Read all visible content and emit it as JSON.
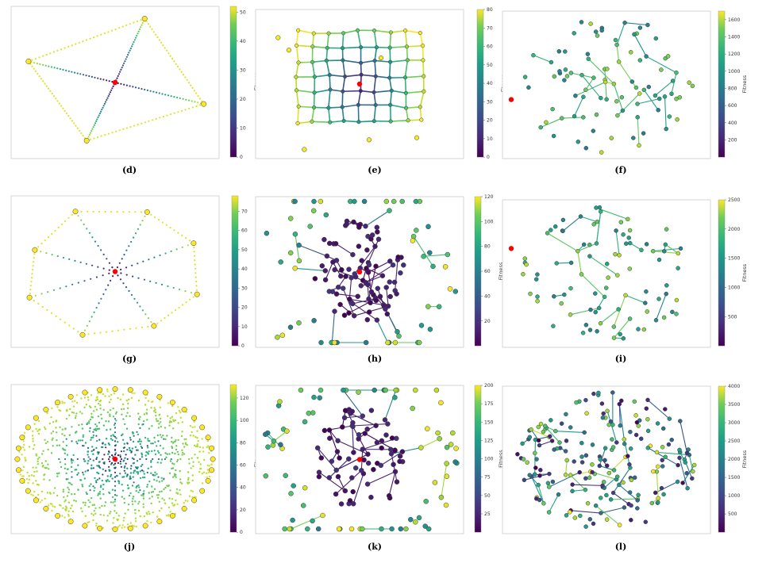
{
  "figure": {
    "colormap": "viridis",
    "center_marker_color": "#ff0000",
    "node_edge_color": "#3a3a3a",
    "frame_color": "#cccccc"
  },
  "chart_data": [
    {
      "type": "scatter",
      "panel": "(d)",
      "pattern": "star",
      "arms": 4,
      "seed": 11,
      "colorbar": {
        "label": "Fitness",
        "ticks": [
          "0",
          "10",
          "20",
          "30",
          "40",
          "50"
        ],
        "vmax": 52
      }
    },
    {
      "type": "scatter",
      "panel": "(e)",
      "pattern": "lattice",
      "seed": 12,
      "colorbar": {
        "label": "Fitness",
        "ticks": [
          "0",
          "10",
          "20",
          "30",
          "40",
          "50",
          "60",
          "70",
          "80"
        ],
        "vmax": 80
      }
    },
    {
      "type": "scatter",
      "panel": "(f)",
      "pattern": "web",
      "seed": 13,
      "colorbar": {
        "label": "Fitness",
        "ticks": [
          "200",
          "400",
          "600",
          "800",
          "1000",
          "1200",
          "1400",
          "1600"
        ],
        "vmax": 1700
      }
    },
    {
      "type": "scatter",
      "panel": "(g)",
      "pattern": "star",
      "arms": 8,
      "seed": 14,
      "colorbar": {
        "label": "Fitness",
        "ticks": [
          "0",
          "10",
          "20",
          "30",
          "40",
          "50",
          "60",
          "70"
        ],
        "vmax": 78
      }
    },
    {
      "type": "scatter",
      "panel": "(h)",
      "pattern": "cluster",
      "seed": 15,
      "colorbar": {
        "label": "Fitness",
        "ticks": [
          "20",
          "40",
          "60",
          "80",
          "100",
          "120"
        ],
        "vmax": 120
      }
    },
    {
      "type": "scatter",
      "panel": "(i)",
      "pattern": "web",
      "seed": 16,
      "colorbar": {
        "label": "Fitness",
        "ticks": [
          "500",
          "1000",
          "1500",
          "2000",
          "2500"
        ],
        "vmax": 2500
      }
    },
    {
      "type": "scatter",
      "panel": "(j)",
      "pattern": "dense-star",
      "seed": 17,
      "colorbar": {
        "label": "Fitness",
        "ticks": [
          "0",
          "20",
          "40",
          "60",
          "80",
          "100",
          "120"
        ],
        "vmax": 132
      }
    },
    {
      "type": "scatter",
      "panel": "(k)",
      "pattern": "cluster",
      "seed": 18,
      "colorbar": {
        "label": "Fitness",
        "ticks": [
          "25",
          "50",
          "75",
          "100",
          "125",
          "150",
          "175",
          "200"
        ],
        "vmax": 200
      }
    },
    {
      "type": "scatter",
      "panel": "(l)",
      "pattern": "scatter-web",
      "seed": 19,
      "colorbar": {
        "label": "Fitness",
        "ticks": [
          "500",
          "1000",
          "1500",
          "2000",
          "2500",
          "3000",
          "3500",
          "4000"
        ],
        "vmax": 4000
      }
    }
  ]
}
